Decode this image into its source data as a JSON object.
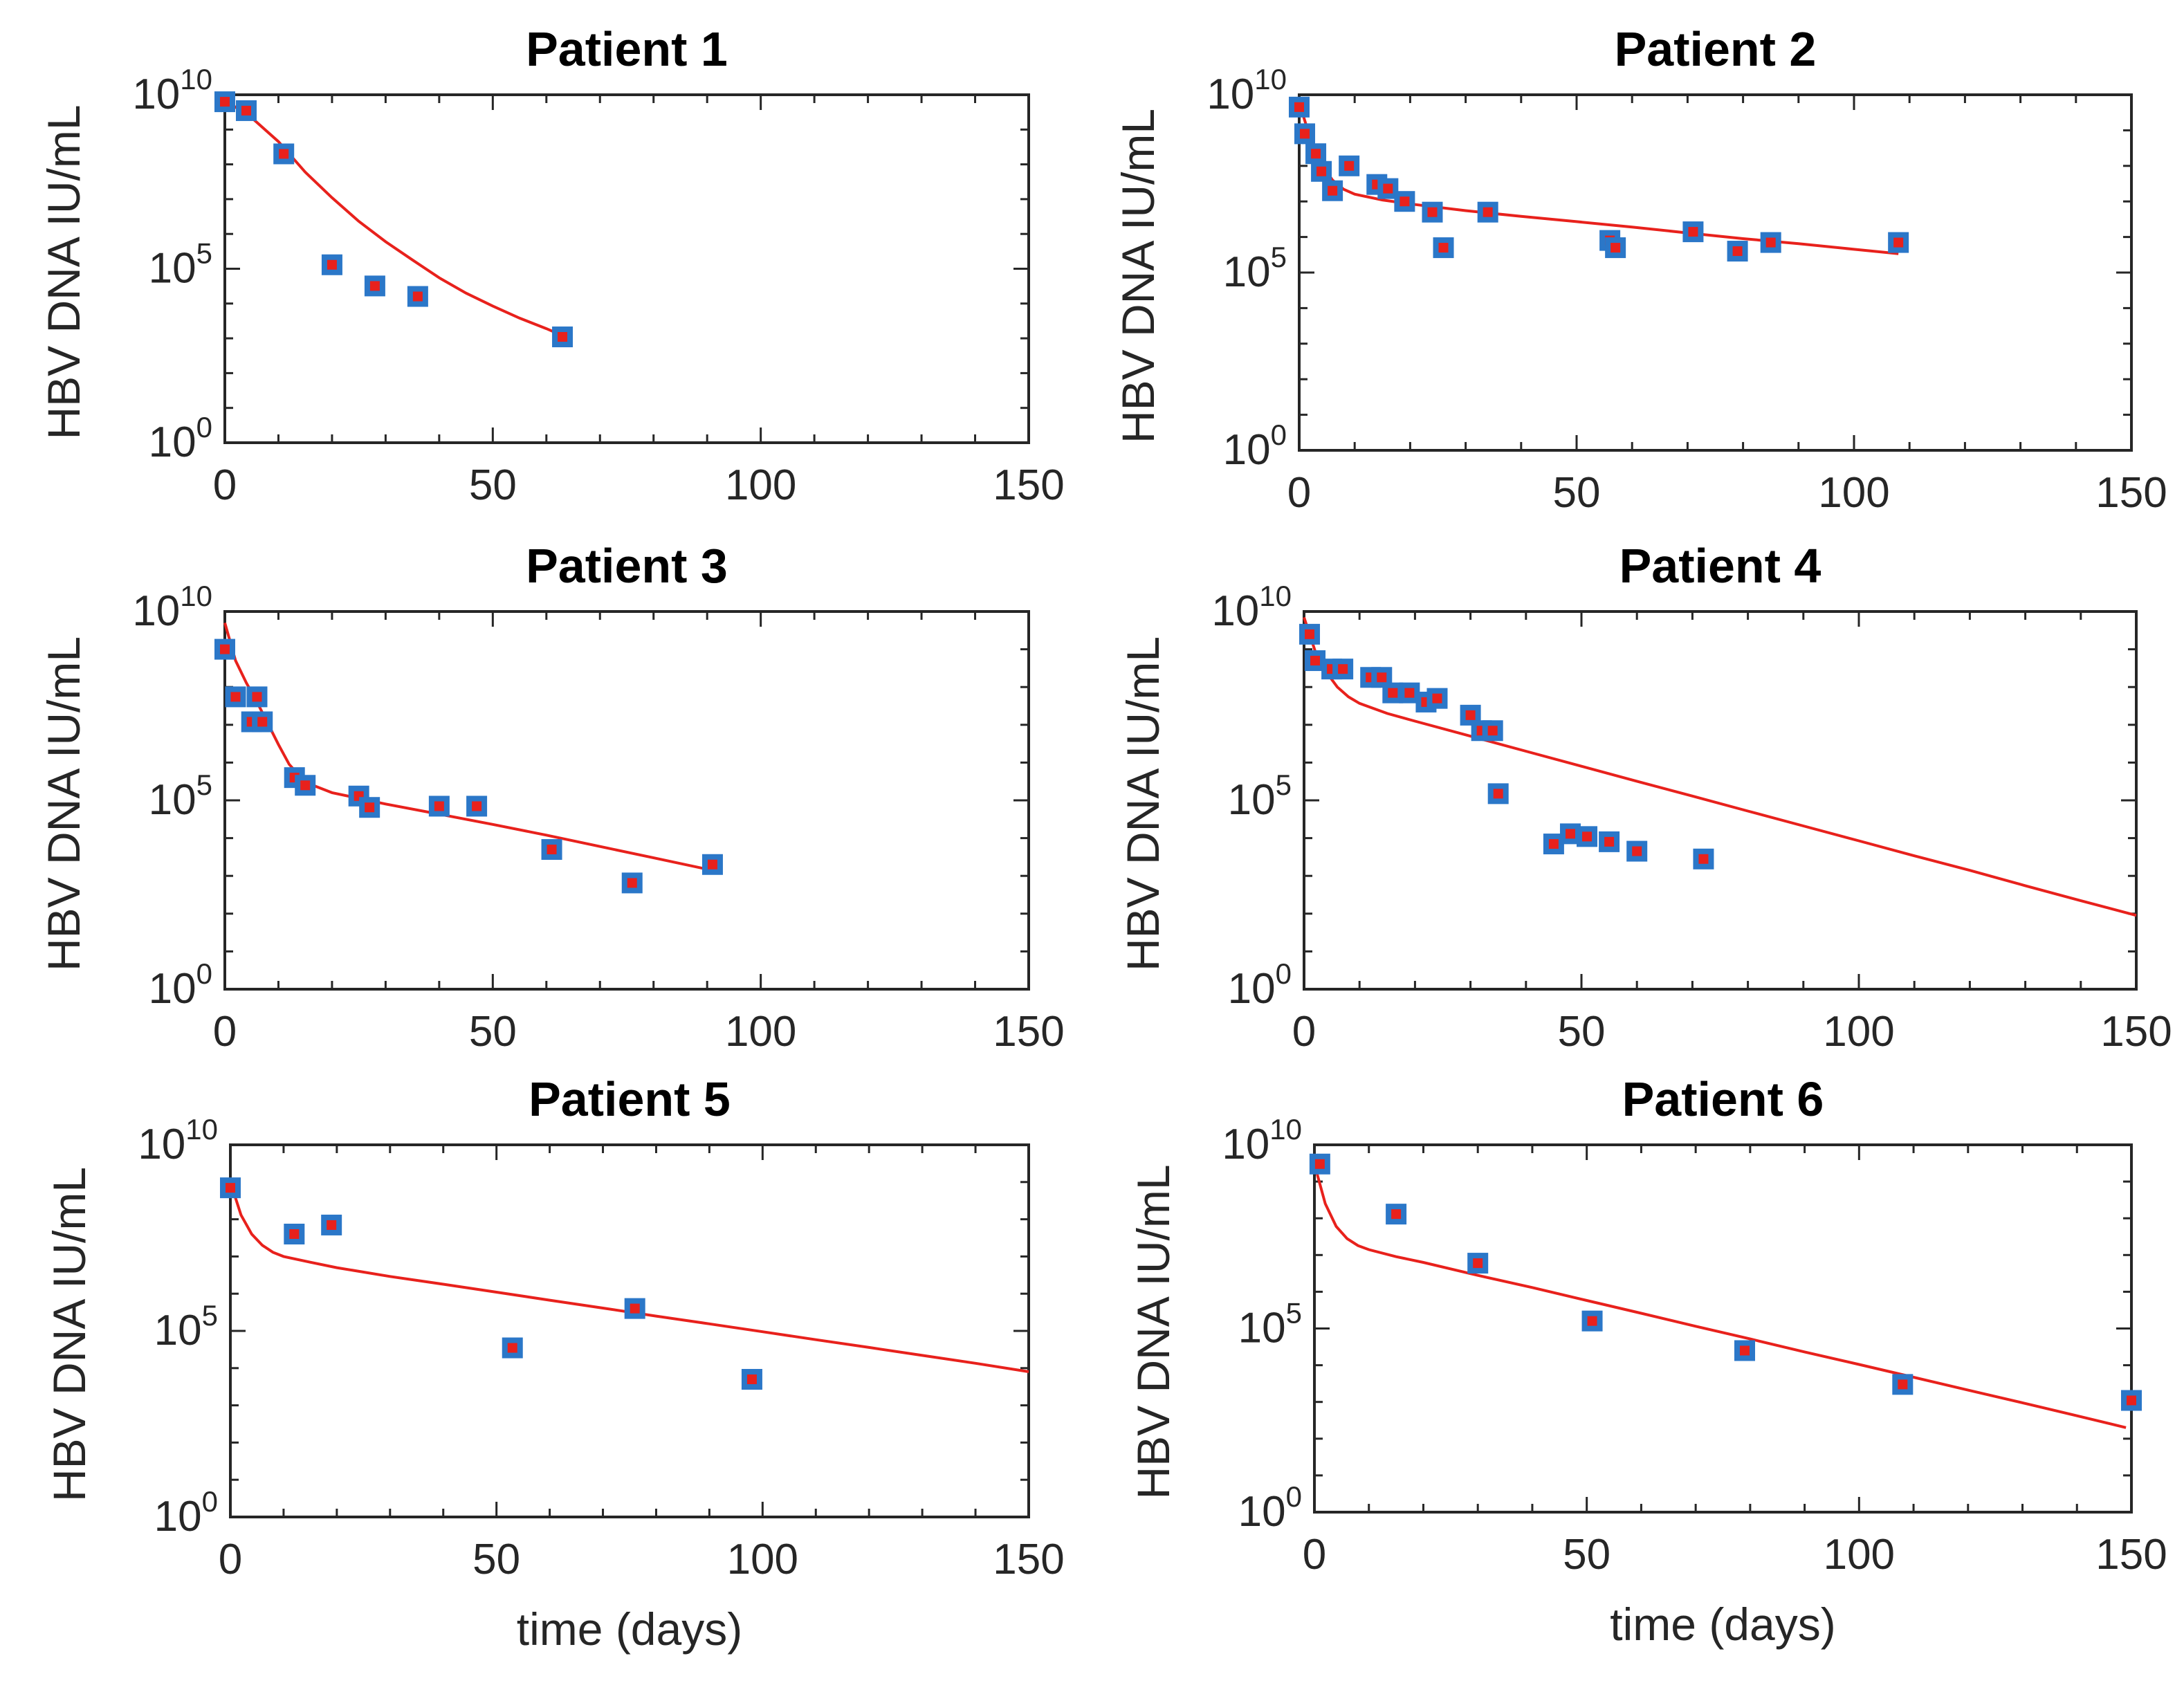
{
  "chart_data": [
    {
      "type": "scatter",
      "title": "Patient 1",
      "xlabel": "",
      "ylabel": "HBV DNA IU/mL",
      "xlim": [
        0,
        150
      ],
      "ylim": [
        1,
        10000000000
      ],
      "yscale": "log",
      "xticks": [
        "0",
        "50",
        "100",
        "150"
      ],
      "yticks": [
        {
          "base": "10",
          "exp": "0",
          "value": 1
        },
        {
          "base": "10",
          "exp": "5",
          "value": 100000
        },
        {
          "base": "10",
          "exp": "10",
          "value": 10000000000
        }
      ],
      "series": [
        {
          "name": "data",
          "x": [
            0,
            4,
            11,
            20,
            28,
            36,
            63
          ],
          "y": [
            6300000000.0,
            3500000000.0,
            200000000.0,
            130000.0,
            32000.0,
            16000.0,
            1100.0
          ]
        },
        {
          "name": "model",
          "x": [
            0,
            5,
            10,
            15,
            20,
            25,
            30,
            35,
            40,
            45,
            50,
            55,
            60,
            63
          ],
          "y": [
            7000000000.0,
            2200000000.0,
            450000000.0,
            60000000.0,
            11000000.0,
            2300000.0,
            600000.0,
            180000.0,
            55000.0,
            20000.0,
            8500.0,
            3800.0,
            1900.0,
            1200.0
          ]
        }
      ]
    },
    {
      "type": "scatter",
      "title": "Patient 2",
      "xlabel": "",
      "ylabel": "HBV DNA IU/mL",
      "xlim": [
        0,
        150
      ],
      "ylim": [
        1,
        10000000000
      ],
      "yscale": "log",
      "xticks": [
        "0",
        "50",
        "100",
        "150"
      ],
      "yticks": [
        {
          "base": "10",
          "exp": "0",
          "value": 1
        },
        {
          "base": "10",
          "exp": "5",
          "value": 100000
        },
        {
          "base": "10",
          "exp": "10",
          "value": 10000000000
        }
      ],
      "series": [
        {
          "name": "data",
          "x": [
            0,
            1,
            3,
            4,
            6,
            9,
            14,
            16,
            19,
            24,
            26,
            34,
            56,
            57,
            71,
            79,
            85,
            108
          ],
          "y": [
            4500000000.0,
            800000000.0,
            220000000.0,
            70000000.0,
            20000000.0,
            100000000.0,
            30000000.0,
            23000000.0,
            10000000.0,
            5000000.0,
            500000.0,
            5000000.0,
            800000.0,
            500000.0,
            1400000.0,
            400000.0,
            700000.0,
            700000.0
          ]
        },
        {
          "name": "model",
          "x": [
            0,
            2,
            4,
            6,
            8,
            10,
            15,
            20,
            30,
            40,
            50,
            60,
            70,
            80,
            90,
            100,
            108
          ],
          "y": [
            6000000000.0,
            600000000.0,
            110000000.0,
            40000000.0,
            22000000.0,
            16000000.0,
            11000000.0,
            8500000.0,
            5500000.0,
            3800000.0,
            2700000.0,
            1900000.0,
            1300000.0,
            900000.0,
            650000.0,
            450000.0,
            340000.0
          ]
        }
      ]
    },
    {
      "type": "scatter",
      "title": "Patient 3",
      "xlabel": "",
      "ylabel": "HBV DNA IU/mL",
      "xlim": [
        0,
        150
      ],
      "ylim": [
        1,
        10000000000
      ],
      "yscale": "log",
      "xticks": [
        "0",
        "50",
        "100",
        "150"
      ],
      "yticks": [
        {
          "base": "10",
          "exp": "0",
          "value": 1
        },
        {
          "base": "10",
          "exp": "5",
          "value": 100000
        },
        {
          "base": "10",
          "exp": "10",
          "value": 10000000000
        }
      ],
      "series": [
        {
          "name": "data",
          "x": [
            0,
            2,
            5,
            6,
            7,
            13,
            15,
            25,
            27,
            40,
            47,
            61,
            76,
            91
          ],
          "y": [
            1000000000.0,
            55000000.0,
            12000000.0,
            55000000.0,
            12000000.0,
            400000.0,
            250000.0,
            130000.0,
            65000.0,
            70000.0,
            70000.0,
            5000.0,
            650.0,
            2000.0
          ]
        },
        {
          "name": "model",
          "x": [
            0,
            2,
            4,
            6,
            8,
            10,
            12,
            15,
            20,
            30,
            40,
            50,
            60,
            70,
            80,
            90
          ],
          "y": [
            5000000000.0,
            500000000.0,
            130000000.0,
            40000000.0,
            11000000.0,
            3000000.0,
            900000.0,
            300000.0,
            160000.0,
            80000.0,
            43000.0,
            23000.0,
            12000.0,
            6000.0,
            3000.0,
            1500.0
          ]
        }
      ]
    },
    {
      "type": "scatter",
      "title": "Patient 4",
      "xlabel": "",
      "ylabel": "HBV DNA IU/mL",
      "xlim": [
        0,
        150
      ],
      "ylim": [
        1,
        10000000000
      ],
      "yscale": "log",
      "xticks": [
        "0",
        "50",
        "100",
        "150"
      ],
      "yticks": [
        {
          "base": "10",
          "exp": "0",
          "value": 1
        },
        {
          "base": "10",
          "exp": "5",
          "value": 100000
        },
        {
          "base": "10",
          "exp": "10",
          "value": 10000000000
        }
      ],
      "series": [
        {
          "name": "data",
          "x": [
            1,
            2,
            5,
            7,
            12,
            14,
            16,
            19,
            22,
            24,
            30,
            32,
            34,
            35,
            45,
            48,
            51,
            55,
            60,
            72
          ],
          "y": [
            2500000000.0,
            500000000.0,
            300000000.0,
            300000000.0,
            180000000.0,
            180000000.0,
            70000000.0,
            70000000.0,
            40000000.0,
            50000000.0,
            18000000.0,
            7000000.0,
            7000000.0,
            150000.0,
            7000.0,
            13000.0,
            11000.0,
            8000.0,
            4500.0,
            2800.0
          ]
        },
        {
          "name": "model",
          "x": [
            0,
            2,
            4,
            6,
            8,
            10,
            15,
            20,
            30,
            40,
            50,
            60,
            70,
            80,
            90,
            100,
            110,
            120,
            130,
            140,
            150
          ],
          "y": [
            7000000000.0,
            900000000.0,
            250000000.0,
            100000000.0,
            55000000.0,
            37000000.0,
            20000000.0,
            12500000.0,
            5000000.0,
            2000000.0,
            800000.0,
            320000.0,
            130000.0,
            52000.0,
            21000.0,
            8500.0,
            3400.0,
            1400.0,
            550.0,
            220.0,
            90.0
          ]
        }
      ]
    },
    {
      "type": "scatter",
      "title": "Patient 5",
      "xlabel": "time (days)",
      "ylabel": "HBV DNA IU/mL",
      "xlim": [
        0,
        150
      ],
      "ylim": [
        1,
        10000000000
      ],
      "yscale": "log",
      "xticks": [
        "0",
        "50",
        "100",
        "150"
      ],
      "yticks": [
        {
          "base": "10",
          "exp": "0",
          "value": 1
        },
        {
          "base": "10",
          "exp": "5",
          "value": 100000
        },
        {
          "base": "10",
          "exp": "10",
          "value": 10000000000
        }
      ],
      "series": [
        {
          "name": "data",
          "x": [
            0,
            12,
            19,
            53,
            76,
            98
          ],
          "y": [
            700000000.0,
            40000000.0,
            70000000.0,
            35000.0,
            400000.0,
            5000.0
          ]
        },
        {
          "name": "model",
          "x": [
            0,
            2,
            4,
            6,
            8,
            10,
            15,
            20,
            30,
            40,
            50,
            60,
            70,
            80,
            90,
            100,
            110,
            120,
            130,
            140,
            150
          ],
          "y": [
            1000000000.0,
            130000000.0,
            40000000.0,
            20000000.0,
            13000000.0,
            10000000.0,
            7000000.0,
            5000000.0,
            2900000.0,
            1800000.0,
            1100000.0,
            670000.0,
            410000.0,
            250000.0,
            155000.0,
            95000.0,
            58000.0,
            36000.0,
            22000.0,
            13500.0,
            8000.0
          ]
        }
      ]
    },
    {
      "type": "scatter",
      "title": "Patient 6",
      "xlabel": "time (days)",
      "ylabel": "HBV DNA IU/mL",
      "xlim": [
        0,
        150
      ],
      "ylim": [
        1,
        10000000000
      ],
      "yscale": "log",
      "xticks": [
        "0",
        "50",
        "100",
        "150"
      ],
      "yticks": [
        {
          "base": "10",
          "exp": "0",
          "value": 1
        },
        {
          "base": "10",
          "exp": "5",
          "value": 100000
        },
        {
          "base": "10",
          "exp": "10",
          "value": 10000000000
        }
      ],
      "series": [
        {
          "name": "data",
          "x": [
            1,
            15,
            30,
            51,
            79,
            108,
            150
          ],
          "y": [
            3000000000.0,
            130000000.0,
            6000000.0,
            160000.0,
            25000.0,
            3000.0,
            1100.0
          ]
        },
        {
          "name": "model",
          "x": [
            0,
            2,
            4,
            6,
            8,
            10,
            15,
            20,
            30,
            40,
            50,
            60,
            70,
            80,
            90,
            100,
            110,
            120,
            130,
            140,
            149
          ],
          "y": [
            3000000000.0,
            250000000.0,
            60000000.0,
            28000000.0,
            18000000.0,
            14000000.0,
            9000000.0,
            6300000.0,
            2800000.0,
            1300000.0,
            580000.0,
            260000.0,
            115000.0,
            52000.0,
            23000.0,
            10500.0,
            4700.0,
            2100.0,
            950.0,
            420.0,
            200.0
          ]
        }
      ]
    }
  ],
  "colors": {
    "fit_line": "#e8211c",
    "marker_edge": "#2b77c8",
    "marker_center": "#e8211c",
    "axes": "#262626"
  }
}
